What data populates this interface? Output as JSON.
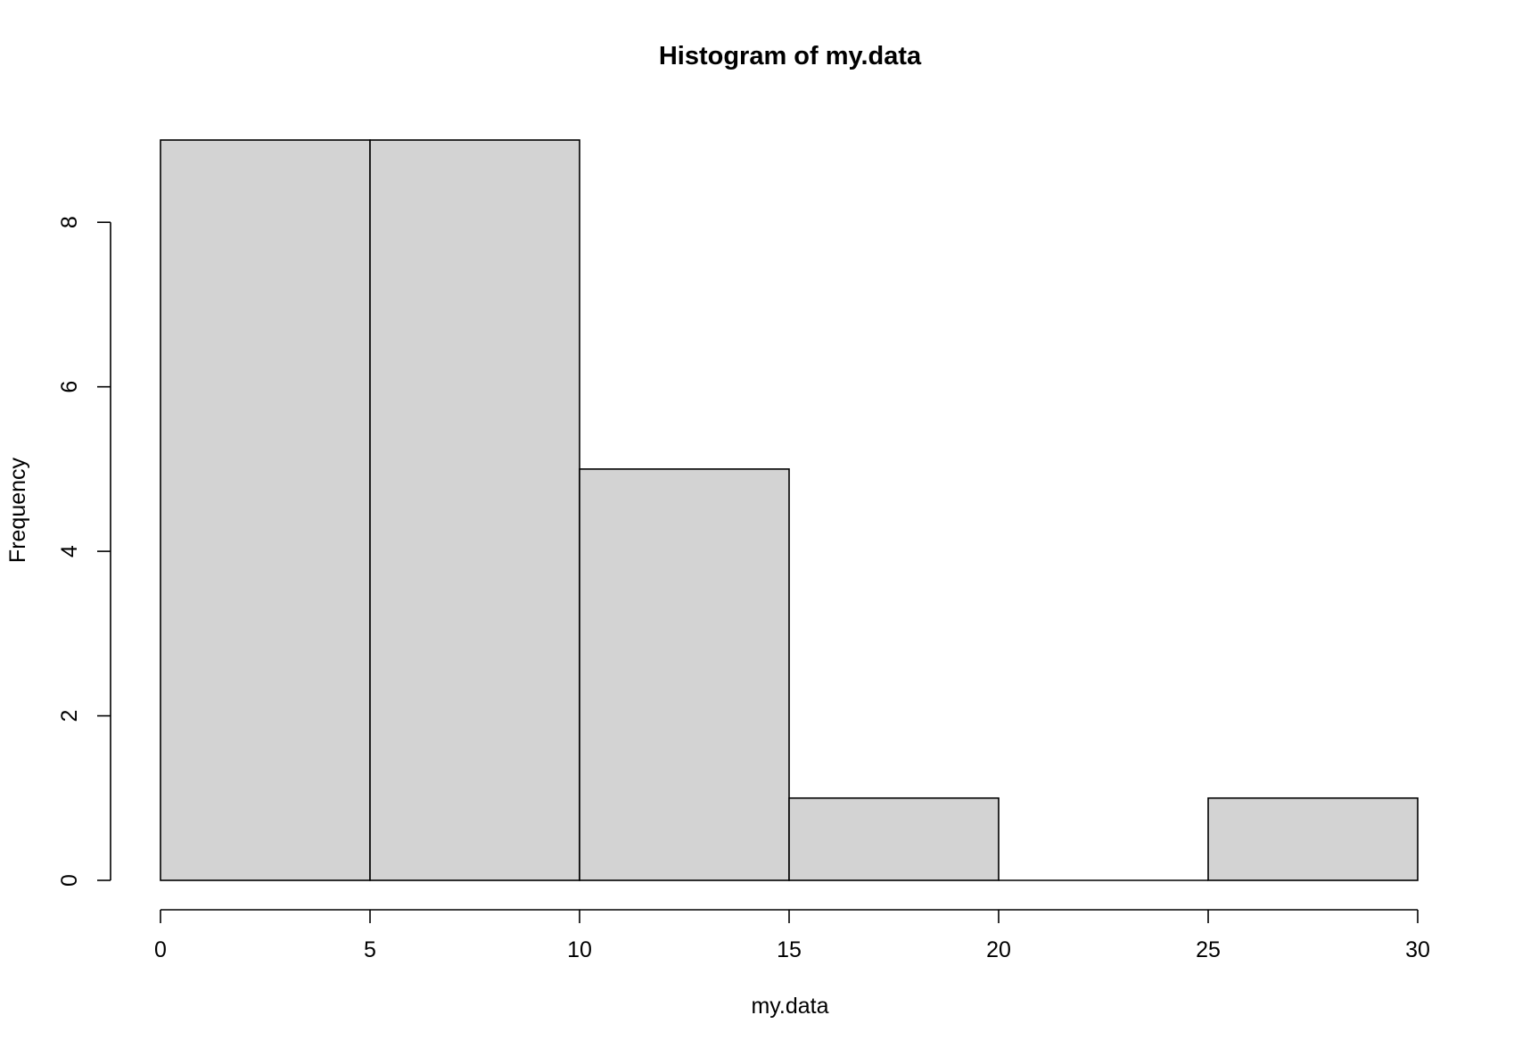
{
  "chart_data": {
    "type": "bar",
    "subtype": "histogram",
    "title": "Histogram of my.data",
    "xlabel": "my.data",
    "ylabel": "Frequency",
    "bins": [
      {
        "start": 0,
        "end": 5,
        "count": 9
      },
      {
        "start": 5,
        "end": 10,
        "count": 9
      },
      {
        "start": 10,
        "end": 15,
        "count": 5
      },
      {
        "start": 15,
        "end": 20,
        "count": 1
      },
      {
        "start": 20,
        "end": 25,
        "count": 0
      },
      {
        "start": 25,
        "end": 30,
        "count": 1
      }
    ],
    "xlim": [
      0,
      30
    ],
    "ylim": [
      0,
      9
    ],
    "x_ticks": [
      0,
      5,
      10,
      15,
      20,
      25,
      30
    ],
    "y_ticks": [
      0,
      2,
      4,
      6,
      8
    ],
    "grid": false,
    "legend": "none",
    "bar_fill": "#d3d3d3",
    "bar_stroke": "#000000"
  }
}
